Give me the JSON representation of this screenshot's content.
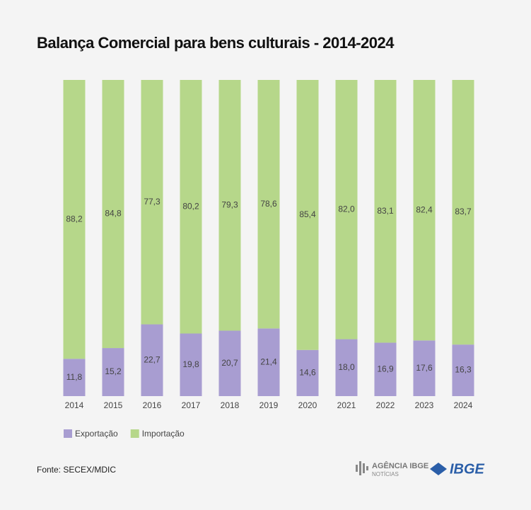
{
  "chart_data": {
    "type": "bar",
    "stacked": true,
    "title": "Balança Comercial para bens culturais - 2014-2024",
    "categories": [
      "2014",
      "2015",
      "2016",
      "2017",
      "2018",
      "2019",
      "2020",
      "2021",
      "2022",
      "2023",
      "2024"
    ],
    "series": [
      {
        "name": "Exportação",
        "color": "#a89dd1",
        "values": [
          11.8,
          15.2,
          22.7,
          19.8,
          20.7,
          21.4,
          14.6,
          18.0,
          16.9,
          17.6,
          16.3
        ],
        "value_labels": [
          "11,8",
          "15,2",
          "22,7",
          "19,8",
          "20,7",
          "21,4",
          "14,6",
          "18,0",
          "16,9",
          "17,6",
          "16,3"
        ]
      },
      {
        "name": "Importação",
        "color": "#b6d78a",
        "values": [
          88.2,
          84.8,
          77.3,
          80.2,
          79.3,
          78.6,
          85.4,
          82.0,
          83.1,
          82.4,
          83.7
        ],
        "value_labels": [
          "88,2",
          "84,8",
          "77,3",
          "80,2",
          "79,3",
          "78,6",
          "85,4",
          "82,0",
          "83,1",
          "82,4",
          "83,7"
        ]
      }
    ],
    "ylim": [
      0,
      100
    ],
    "source": "Fonte: SECEX/MDIC"
  },
  "logos": {
    "agency": "AGÊNCIA IBGE",
    "agency_sub": "NOTÍCIAS",
    "ibge": "IBGE"
  }
}
